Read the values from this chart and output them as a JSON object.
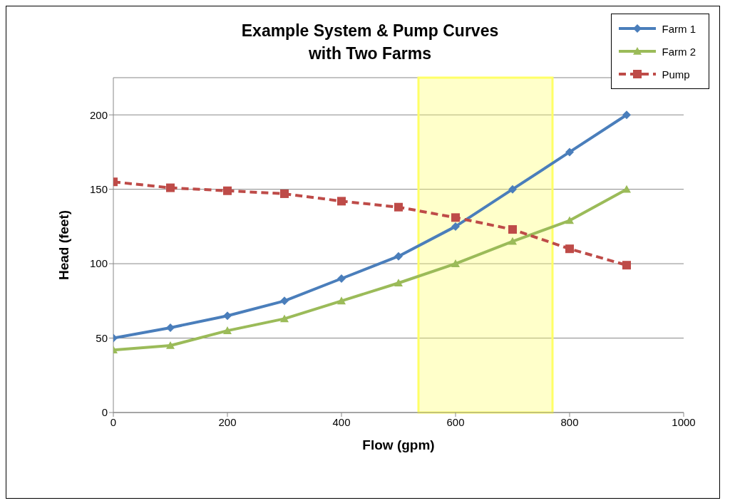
{
  "chart_data": {
    "type": "line",
    "title": "Example System & Pump Curves\nwith Two Farms",
    "xlabel": "Flow (gpm)",
    "ylabel": "Head (feet)",
    "x": [
      0,
      100,
      200,
      300,
      400,
      500,
      600,
      700,
      800,
      900
    ],
    "series": [
      {
        "name": "Farm 1",
        "color": "#4a7ebb",
        "marker": "diamond",
        "line_style": "solid",
        "values": [
          50,
          57,
          65,
          75,
          90,
          105,
          125,
          150,
          175,
          200
        ]
      },
      {
        "name": "Farm 2",
        "color": "#9bbb59",
        "marker": "triangle",
        "line_style": "solid",
        "values": [
          42,
          45,
          55,
          63,
          75,
          87,
          100,
          115,
          129,
          150
        ]
      },
      {
        "name": "Pump",
        "color": "#be4b48",
        "marker": "square",
        "line_style": "dashed",
        "values": [
          155,
          151,
          149,
          147,
          142,
          138,
          131,
          123,
          110,
          99
        ]
      }
    ],
    "xlim": [
      0,
      1000
    ],
    "xticks": [
      0,
      200,
      400,
      600,
      800,
      1000
    ],
    "ylim": [
      0,
      225
    ],
    "yticks": [
      0,
      50,
      100,
      150,
      200
    ],
    "bands": [
      {
        "axis": "x",
        "from": 535,
        "to": 770,
        "color": "#ffff66"
      }
    ],
    "grid": "y",
    "legend": "top right"
  }
}
